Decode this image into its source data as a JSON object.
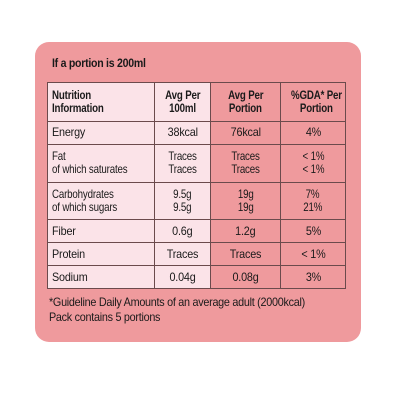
{
  "portion_note": "If a portion is 200ml",
  "columns": {
    "nutrition_information": [
      "Nutrition",
      "Information"
    ],
    "avg_per_100ml": [
      "Avg Per",
      "100ml"
    ],
    "avg_per_portion": [
      "Avg Per",
      "Portion"
    ],
    "gda_per_portion": [
      "%GDA* Per",
      "Portion"
    ]
  },
  "rows": {
    "energy": {
      "name": "Energy",
      "per100": "38kcal",
      "portion": "76kcal",
      "gda": "4%"
    },
    "fat": {
      "name": "Fat",
      "per100": "Traces",
      "portion": "Traces",
      "gda": "< 1%"
    },
    "saturates": {
      "name": "of which saturates",
      "per100": "Traces",
      "portion": "Traces",
      "gda": "< 1%"
    },
    "carbohydrates": {
      "name": "Carbohydrates",
      "per100": "9.5g",
      "portion": "19g",
      "gda": "7%"
    },
    "sugars": {
      "name": "of which sugars",
      "per100": "9.5g",
      "portion": "19g",
      "gda": "21%"
    },
    "fiber": {
      "name": "Fiber",
      "per100": "0.6g",
      "portion": "1.2g",
      "gda": "5%"
    },
    "protein": {
      "name": "Protein",
      "per100": "Traces",
      "portion": "Traces",
      "gda": "< 1%"
    },
    "sodium": {
      "name": "Sodium",
      "per100": "0.04g",
      "portion": "0.08g",
      "gda": "3%"
    }
  },
  "footer": {
    "gda_note": "*Guideline Daily Amounts of an average adult (2000kcal)",
    "pack_note": "Pack contains 5 portions"
  },
  "colors": {
    "panel_background": "#ef9a9d",
    "left_columns_background": "#fbe3e8",
    "border": "#6b4a4c"
  }
}
